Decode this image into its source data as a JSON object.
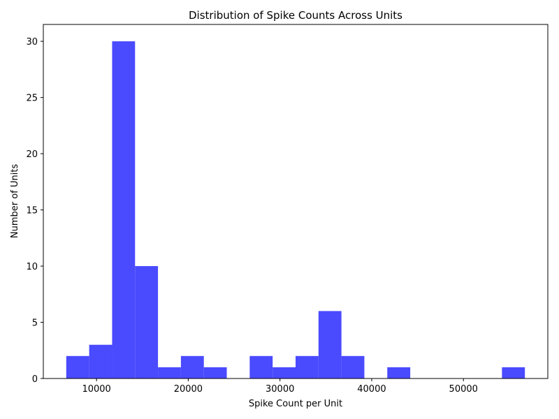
{
  "chart_data": {
    "type": "bar",
    "subtype": "histogram",
    "title": "Distribution of Spike Counts Across Units",
    "xlabel": "Spike Count per Unit",
    "ylabel": "Number of Units",
    "bins": [
      {
        "start": 6700,
        "end": 9200,
        "count": 2
      },
      {
        "start": 9200,
        "end": 11700,
        "count": 3
      },
      {
        "start": 11700,
        "end": 14200,
        "count": 30
      },
      {
        "start": 14200,
        "end": 16700,
        "count": 10
      },
      {
        "start": 16700,
        "end": 19200,
        "count": 1
      },
      {
        "start": 19200,
        "end": 21700,
        "count": 2
      },
      {
        "start": 21700,
        "end": 24200,
        "count": 1
      },
      {
        "start": 24200,
        "end": 26700,
        "count": 0
      },
      {
        "start": 26700,
        "end": 29200,
        "count": 2
      },
      {
        "start": 29200,
        "end": 31700,
        "count": 1
      },
      {
        "start": 31700,
        "end": 34200,
        "count": 2
      },
      {
        "start": 34200,
        "end": 36700,
        "count": 6
      },
      {
        "start": 36700,
        "end": 39200,
        "count": 2
      },
      {
        "start": 39200,
        "end": 41700,
        "count": 0
      },
      {
        "start": 41700,
        "end": 44200,
        "count": 1
      },
      {
        "start": 44200,
        "end": 46700,
        "count": 0
      },
      {
        "start": 46700,
        "end": 49200,
        "count": 0
      },
      {
        "start": 49200,
        "end": 51700,
        "count": 0
      },
      {
        "start": 51700,
        "end": 54200,
        "count": 0
      },
      {
        "start": 54200,
        "end": 56700,
        "count": 1
      }
    ],
    "xlim": [
      4200,
      59200
    ],
    "ylim": [
      0,
      31.5
    ],
    "xticks": [
      10000,
      20000,
      30000,
      40000,
      50000
    ],
    "yticks": [
      0,
      5,
      10,
      15,
      20,
      25,
      30
    ],
    "bar_color": "#4a4aff",
    "grid": false
  }
}
